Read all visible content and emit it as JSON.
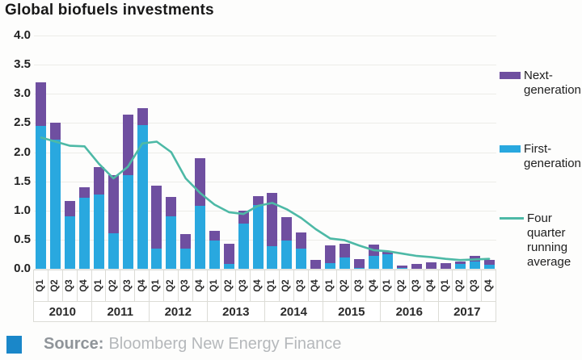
{
  "title": "Global biofuels investments",
  "legend": {
    "next_gen_label": "Next-generation",
    "first_gen_label": "First-generation",
    "avg_label": "Four quarter running average"
  },
  "source": {
    "label": "Source:",
    "text": "Bloomberg New Energy Finance"
  },
  "colors": {
    "first_gen": "#29a8df",
    "next_gen": "#6f4fa0",
    "avg_line": "#4db9a6",
    "source_square": "#1a87c9",
    "grid": "#ecece8",
    "cell_border": "#dcdcd7"
  },
  "y_axis": {
    "ticks": [
      "4.0",
      "3.5",
      "3.0",
      "2.5",
      "2.0",
      "1.5",
      "1.0",
      "0.5",
      "0.0"
    ],
    "max": 4.0,
    "min": 0.0
  },
  "x_axis": {
    "years": [
      "2010",
      "2011",
      "2012",
      "2013",
      "2014",
      "2015",
      "2016",
      "2017"
    ],
    "quarter_pattern": [
      "Q1",
      "Q2",
      "Q3",
      "Q4"
    ]
  },
  "chart_data": {
    "type": "bar",
    "stacked": true,
    "title": "Global biofuels investments",
    "xlabel": "",
    "ylabel": "",
    "ylim": [
      0,
      4
    ],
    "grid": "horizontal faint",
    "legend_position": "right",
    "categories": [
      "Q1 2010",
      "Q2 2010",
      "Q3 2010",
      "Q4 2010",
      "Q1 2011",
      "Q2 2011",
      "Q3 2011",
      "Q4 2011",
      "Q1 2012",
      "Q2 2012",
      "Q3 2012",
      "Q4 2012",
      "Q1 2013",
      "Q2 2013",
      "Q3 2013",
      "Q4 2013",
      "Q1 2014",
      "Q2 2014",
      "Q3 2014",
      "Q4 2014",
      "Q1 2015",
      "Q2 2015",
      "Q3 2015",
      "Q4 2015",
      "Q1 2016",
      "Q2 2016",
      "Q3 2016",
      "Q4 2016",
      "Q1 2017",
      "Q2 2017",
      "Q3 2017",
      "Q4 2017"
    ],
    "series": [
      {
        "name": "First-generation",
        "type": "bar",
        "color": "#29a8df",
        "values": [
          2.45,
          2.21,
          0.9,
          1.22,
          1.27,
          0.61,
          1.6,
          2.46,
          0.35,
          0.9,
          0.34,
          1.08,
          0.48,
          0.08,
          0.78,
          1.1,
          0.39,
          0.48,
          0.34,
          0.0,
          0.1,
          0.2,
          0.02,
          0.22,
          0.25,
          0.02,
          0.0,
          0.0,
          0.0,
          0.09,
          0.13,
          0.07
        ]
      },
      {
        "name": "Next-generation",
        "type": "bar",
        "color": "#6f4fa0",
        "values": [
          0.75,
          0.3,
          0.26,
          0.18,
          0.48,
          0.99,
          1.05,
          0.29,
          1.08,
          0.33,
          0.25,
          0.81,
          0.17,
          0.35,
          0.22,
          0.14,
          0.91,
          0.4,
          0.28,
          0.15,
          0.3,
          0.23,
          0.14,
          0.2,
          0.05,
          0.04,
          0.09,
          0.11,
          0.1,
          0.03,
          0.09,
          0.08
        ]
      },
      {
        "name": "Four quarter running average",
        "type": "line",
        "color": "#4db9a6",
        "values": [
          2.25,
          2.18,
          2.11,
          2.1,
          1.8,
          1.55,
          1.75,
          2.15,
          2.18,
          2.0,
          1.55,
          1.3,
          1.1,
          0.97,
          0.94,
          1.08,
          1.13,
          1.02,
          0.87,
          0.68,
          0.52,
          0.49,
          0.4,
          0.32,
          0.3,
          0.26,
          0.22,
          0.2,
          0.17,
          0.15,
          0.16,
          0.17
        ]
      }
    ]
  }
}
